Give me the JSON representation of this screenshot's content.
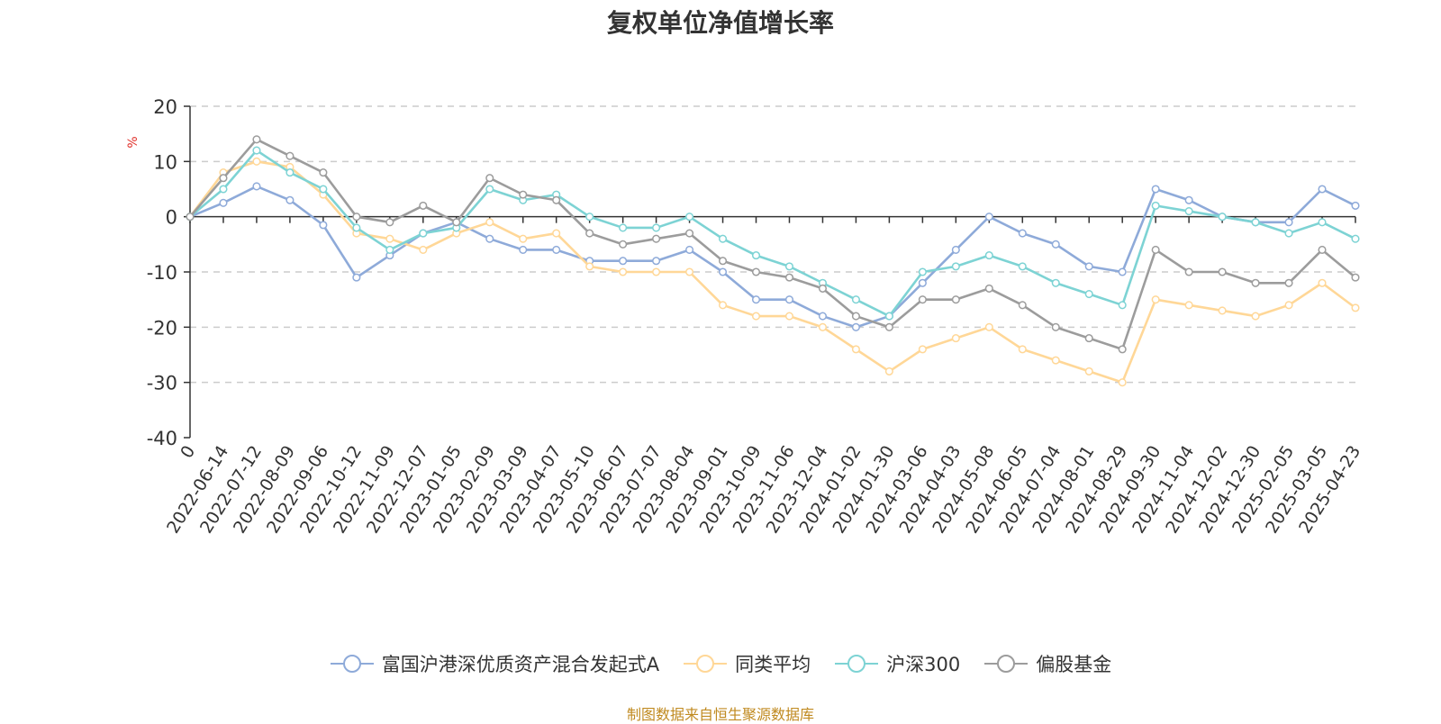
{
  "chart_data": {
    "type": "line",
    "title": "复权单位净值增长率",
    "ylabel": "%",
    "ylim": [
      -40,
      20
    ],
    "yticks": [
      20,
      10,
      0,
      -10,
      -20,
      -30,
      -40
    ],
    "x_ticks": [
      "0",
      "2022-06-14",
      "2022-07-12",
      "2022-08-09",
      "2022-09-06",
      "2022-10-12",
      "2022-11-09",
      "2022-12-07",
      "2023-01-05",
      "2023-02-09",
      "2023-03-09",
      "2023-04-07",
      "2023-05-10",
      "2023-06-07",
      "2023-07-07",
      "2023-08-04",
      "2023-09-01",
      "2023-10-09",
      "2023-11-06",
      "2023-12-04",
      "2024-01-02",
      "2024-01-30",
      "2024-03-06",
      "2024-04-03",
      "2024-05-08",
      "2024-06-05",
      "2024-07-04",
      "2024-08-01",
      "2024-08-29",
      "2024-09-30",
      "2024-11-04",
      "2024-12-02",
      "2024-12-30",
      "2025-02-05",
      "2025-03-05",
      "2025-04-23"
    ],
    "grid": true,
    "legend_position": "bottom",
    "series": [
      {
        "name": "富国沪港深优质资产混合发起式A",
        "color": "#8eaad9",
        "values": [
          0,
          2.5,
          5.5,
          3,
          -1.5,
          -11,
          -7,
          -3,
          -1,
          -4,
          -6,
          -6,
          -8,
          -8,
          -8,
          -6,
          -10,
          -15,
          -15,
          -18,
          -20,
          -18,
          -12,
          -6,
          0,
          -3,
          -5,
          -9,
          -10,
          5,
          3,
          0,
          -1,
          -1,
          5,
          2
        ]
      },
      {
        "name": "同类平均",
        "color": "#ffd797",
        "values": [
          0,
          8,
          10,
          9,
          4,
          -3,
          -4,
          -6,
          -3,
          -1,
          -4,
          -3,
          -9,
          -10,
          -10,
          -10,
          -16,
          -18,
          -18,
          -20,
          -24,
          -28,
          -24,
          -22,
          -20,
          -24,
          -26,
          -28,
          -30,
          -15,
          -16,
          -17,
          -18,
          -16,
          -12,
          -16.5
        ]
      },
      {
        "name": "沪深300",
        "color": "#7dd3d4",
        "values": [
          0,
          5,
          12,
          8,
          5,
          -2,
          -6,
          -3,
          -2,
          5,
          3,
          4,
          0,
          -2,
          -2,
          0,
          -4,
          -7,
          -9,
          -12,
          -15,
          -18,
          -10,
          -9,
          -7,
          -9,
          -12,
          -14,
          -16,
          2,
          1,
          0,
          -1,
          -3,
          -1,
          -4
        ]
      },
      {
        "name": "偏股基金",
        "color": "#9c9c9c",
        "values": [
          0,
          7,
          14,
          11,
          8,
          0,
          -1,
          2,
          -1,
          7,
          4,
          3,
          -3,
          -5,
          -4,
          -3,
          -8,
          -10,
          -11,
          -13,
          -18,
          -20,
          -15,
          -15,
          -13,
          -16,
          -20,
          -22,
          -24,
          -6,
          -10,
          -10,
          -12,
          -12,
          -6,
          -11
        ]
      }
    ]
  },
  "source_note": "制图数据来自恒生聚源数据库"
}
